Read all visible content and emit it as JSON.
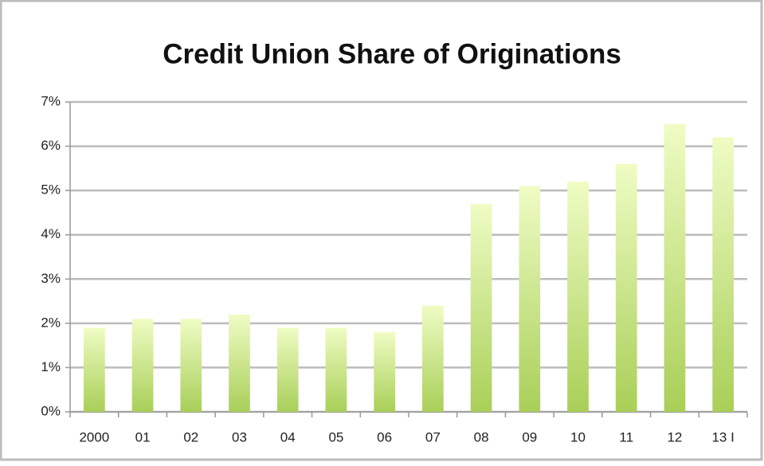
{
  "chart_data": {
    "type": "bar",
    "title": "Credit Union Share of Originations",
    "categories": [
      "2000",
      "01",
      "02",
      "03",
      "04",
      "05",
      "06",
      "07",
      "08",
      "09",
      "10",
      "11",
      "12",
      "13 I"
    ],
    "values": [
      1.9,
      2.1,
      2.1,
      2.2,
      1.9,
      1.9,
      1.8,
      2.4,
      4.7,
      5.1,
      5.2,
      5.6,
      6.5,
      6.2
    ],
    "color": [
      "#effcc4",
      "#a9cf58"
    ],
    "ylim": [
      0,
      7
    ],
    "yticks": [
      {
        "value": 0,
        "label": "0%"
      },
      {
        "value": 1,
        "label": "1%"
      },
      {
        "value": 2,
        "label": "2%"
      },
      {
        "value": 3,
        "label": "3%"
      },
      {
        "value": 4,
        "label": "4%"
      },
      {
        "value": 5,
        "label": "5%"
      },
      {
        "value": 6,
        "label": "6%"
      },
      {
        "value": 7,
        "label": "7%"
      }
    ],
    "grid": true
  }
}
